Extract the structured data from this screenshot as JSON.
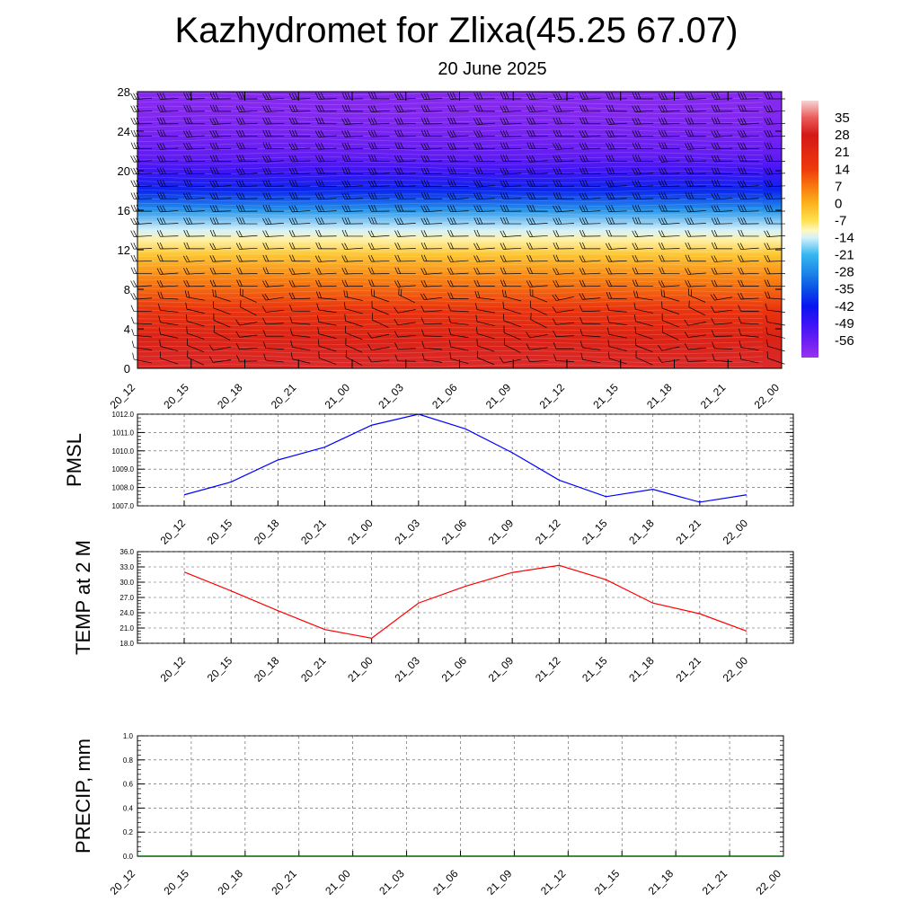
{
  "title": "Kazhydromet for Zlixa(45.25 67.07)",
  "subtitle": "20 June 2025",
  "time_labels": [
    "20_12",
    "20_15",
    "20_18",
    "20_21",
    "21_00",
    "21_03",
    "21_06",
    "21_09",
    "21_12",
    "21_15",
    "21_18",
    "21_21",
    "22_00"
  ],
  "chart_data": [
    {
      "type": "heatmap",
      "title": "",
      "xlabel": "",
      "ylabel": "",
      "x": [
        "20_12",
        "20_15",
        "20_18",
        "20_21",
        "21_00",
        "21_03",
        "21_06",
        "21_09",
        "21_12",
        "21_15",
        "21_18",
        "21_21",
        "22_00"
      ],
      "y_ticks": [
        0,
        4,
        8,
        12,
        16,
        20,
        24,
        28
      ],
      "ylim": [
        0,
        28
      ],
      "colorbar": {
        "labels": [
          "35",
          "28",
          "21",
          "14",
          "7",
          "0",
          "-7",
          "-14",
          "-21",
          "-28",
          "-35",
          "-42",
          "-49",
          "-56"
        ],
        "range": [
          -63,
          42
        ],
        "stops": [
          {
            "v": 42,
            "color": "#f5d5d5"
          },
          {
            "v": 35,
            "color": "#eb5a5a"
          },
          {
            "v": 28,
            "color": "#d41818"
          },
          {
            "v": 14,
            "color": "#ee3a0c"
          },
          {
            "v": 7,
            "color": "#f87810"
          },
          {
            "v": 0,
            "color": "#fbb21c"
          },
          {
            "v": -7,
            "color": "#ffe050"
          },
          {
            "v": -11,
            "color": "#fff7c0"
          },
          {
            "v": -14,
            "color": "#d5f2fb"
          },
          {
            "v": -21,
            "color": "#35b6f0"
          },
          {
            "v": -28,
            "color": "#1e88e8"
          },
          {
            "v": -35,
            "color": "#0a50e6"
          },
          {
            "v": -42,
            "color": "#0a14f0"
          },
          {
            "v": -49,
            "color": "#3a14f5"
          },
          {
            "v": -56,
            "color": "#6a1ef2"
          },
          {
            "v": -63,
            "color": "#9a32f0"
          }
        ]
      },
      "temperature_profile": [
        [
          0,
          30
        ],
        [
          3,
          24
        ],
        [
          6,
          16
        ],
        [
          9,
          6
        ],
        [
          11.5,
          -3
        ],
        [
          13,
          -10
        ],
        [
          14,
          -14
        ],
        [
          16,
          -26
        ],
        [
          18,
          -40
        ],
        [
          20,
          -50
        ],
        [
          21.5,
          -55
        ],
        [
          24,
          -58
        ],
        [
          26,
          -60
        ],
        [
          28,
          -60
        ]
      ],
      "grid": false,
      "wind_barbs": true
    },
    {
      "type": "line",
      "title": "",
      "xlabel": "",
      "ylabel": "PMSL",
      "x": [
        "20_12",
        "20_15",
        "20_18",
        "20_21",
        "21_00",
        "21_03",
        "21_06",
        "21_09",
        "21_12",
        "21_15",
        "21_18",
        "21_21",
        "22_00"
      ],
      "y_ticks": [
        "1007.0",
        "1008.0",
        "1009.0",
        "1010.0",
        "1011.0",
        "1012.0"
      ],
      "ylim": [
        1007,
        1012
      ],
      "series": [
        {
          "values": [
            1007.6,
            1008.3,
            1009.5,
            1010.2,
            1011.4,
            1012.0,
            1011.2,
            1009.9,
            1008.4,
            1007.5,
            1007.9,
            1007.2,
            1007.6
          ],
          "color": "#0000ff"
        }
      ],
      "grid": true
    },
    {
      "type": "line",
      "title": "",
      "xlabel": "",
      "ylabel": "TEMP at 2 M",
      "x": [
        "20_12",
        "20_15",
        "20_18",
        "20_21",
        "21_00",
        "21_03",
        "21_06",
        "21_09",
        "21_12",
        "21_15",
        "21_18",
        "21_21",
        "22_00"
      ],
      "y_ticks": [
        "18.0",
        "21.0",
        "24.0",
        "27.0",
        "30.0",
        "33.0",
        "36.0"
      ],
      "ylim": [
        18,
        36
      ],
      "series": [
        {
          "values": [
            32.0,
            28.3,
            24.4,
            20.7,
            19.0,
            25.9,
            29.2,
            31.9,
            33.3,
            30.5,
            25.9,
            23.8,
            20.4
          ],
          "color": "#ff0000"
        }
      ],
      "grid": true
    },
    {
      "type": "line",
      "title": "",
      "xlabel": "",
      "ylabel": "PRECIP, mm",
      "x": [
        "20_12",
        "20_15",
        "20_18",
        "20_21",
        "21_00",
        "21_03",
        "21_06",
        "21_09",
        "21_12",
        "21_15",
        "21_18",
        "21_21",
        "22_00"
      ],
      "y_ticks": [
        "0.0",
        "0.2",
        "0.4",
        "0.6",
        "0.8",
        "1.0"
      ],
      "ylim": [
        0,
        1
      ],
      "series": [
        {
          "values": [
            0,
            0,
            0,
            0,
            0,
            0,
            0,
            0,
            0,
            0,
            0,
            0,
            0
          ],
          "color": "#006400"
        }
      ],
      "grid": true
    }
  ]
}
